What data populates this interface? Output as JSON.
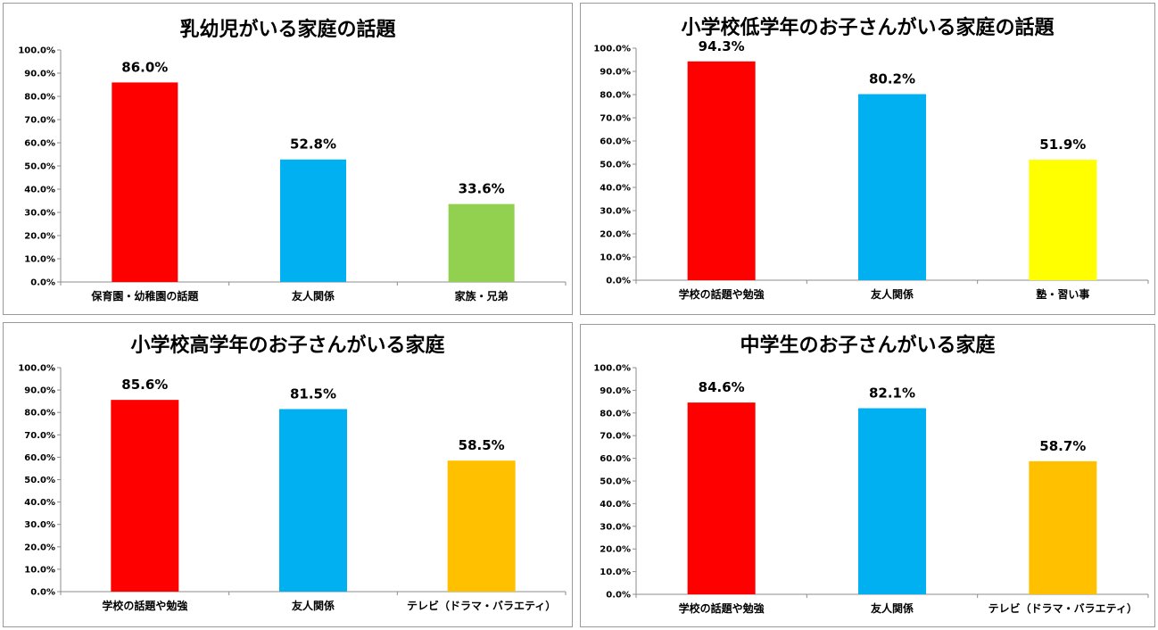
{
  "chart_data": [
    {
      "type": "bar",
      "title": "乳幼児がいる家庭の話題",
      "categories": [
        "保育園・幼稚園の話題",
        "友人関係",
        "家族・兄弟"
      ],
      "values": [
        86.0,
        52.8,
        33.6
      ],
      "value_labels": [
        "86.0%",
        "52.8%",
        "33.6%"
      ],
      "colors": [
        "#ff0000",
        "#00b0f0",
        "#92d050"
      ],
      "ylim": [
        0,
        100
      ],
      "yticks": [
        "0.0%",
        "10.0%",
        "20.0%",
        "30.0%",
        "40.0%",
        "50.0%",
        "60.0%",
        "70.0%",
        "80.0%",
        "90.0%",
        "100.0%"
      ],
      "grid": false,
      "legend": "none"
    },
    {
      "type": "bar",
      "title": "小学校低学年のお子さんがいる家庭の話題",
      "categories": [
        "学校の話題や勉強",
        "友人関係",
        "塾・習い事"
      ],
      "values": [
        94.3,
        80.2,
        51.9
      ],
      "value_labels": [
        "94.3%",
        "80.2%",
        "51.9%"
      ],
      "colors": [
        "#ff0000",
        "#00b0f0",
        "#ffff00"
      ],
      "ylim": [
        0,
        100
      ],
      "yticks": [
        "0.0%",
        "10.0%",
        "20.0%",
        "30.0%",
        "40.0%",
        "50.0%",
        "60.0%",
        "70.0%",
        "80.0%",
        "90.0%",
        "100.0%"
      ],
      "grid": false,
      "legend": "none"
    },
    {
      "type": "bar",
      "title": "小学校高学年のお子さんがいる家庭",
      "categories": [
        "学校の話題や勉強",
        "友人関係",
        "テレビ（ドラマ・バラエティ）"
      ],
      "values": [
        85.6,
        81.5,
        58.5
      ],
      "value_labels": [
        "85.6%",
        "81.5%",
        "58.5%"
      ],
      "colors": [
        "#ff0000",
        "#00b0f0",
        "#ffc000"
      ],
      "ylim": [
        0,
        100
      ],
      "yticks": [
        "0.0%",
        "10.0%",
        "20.0%",
        "30.0%",
        "40.0%",
        "50.0%",
        "60.0%",
        "70.0%",
        "80.0%",
        "90.0%",
        "100.0%"
      ],
      "grid": false,
      "legend": "none"
    },
    {
      "type": "bar",
      "title": "中学生のお子さんがいる家庭",
      "categories": [
        "学校の話題や勉強",
        "友人関係",
        "テレビ（ドラマ・バラエティ）"
      ],
      "values": [
        84.6,
        82.1,
        58.7
      ],
      "value_labels": [
        "84.6%",
        "82.1%",
        "58.7%"
      ],
      "colors": [
        "#ff0000",
        "#00b0f0",
        "#ffc000"
      ],
      "ylim": [
        0,
        100
      ],
      "yticks": [
        "0.0%",
        "10.0%",
        "20.0%",
        "30.0%",
        "40.0%",
        "50.0%",
        "60.0%",
        "70.0%",
        "80.0%",
        "90.0%",
        "100.0%"
      ],
      "grid": false,
      "legend": "none"
    }
  ]
}
